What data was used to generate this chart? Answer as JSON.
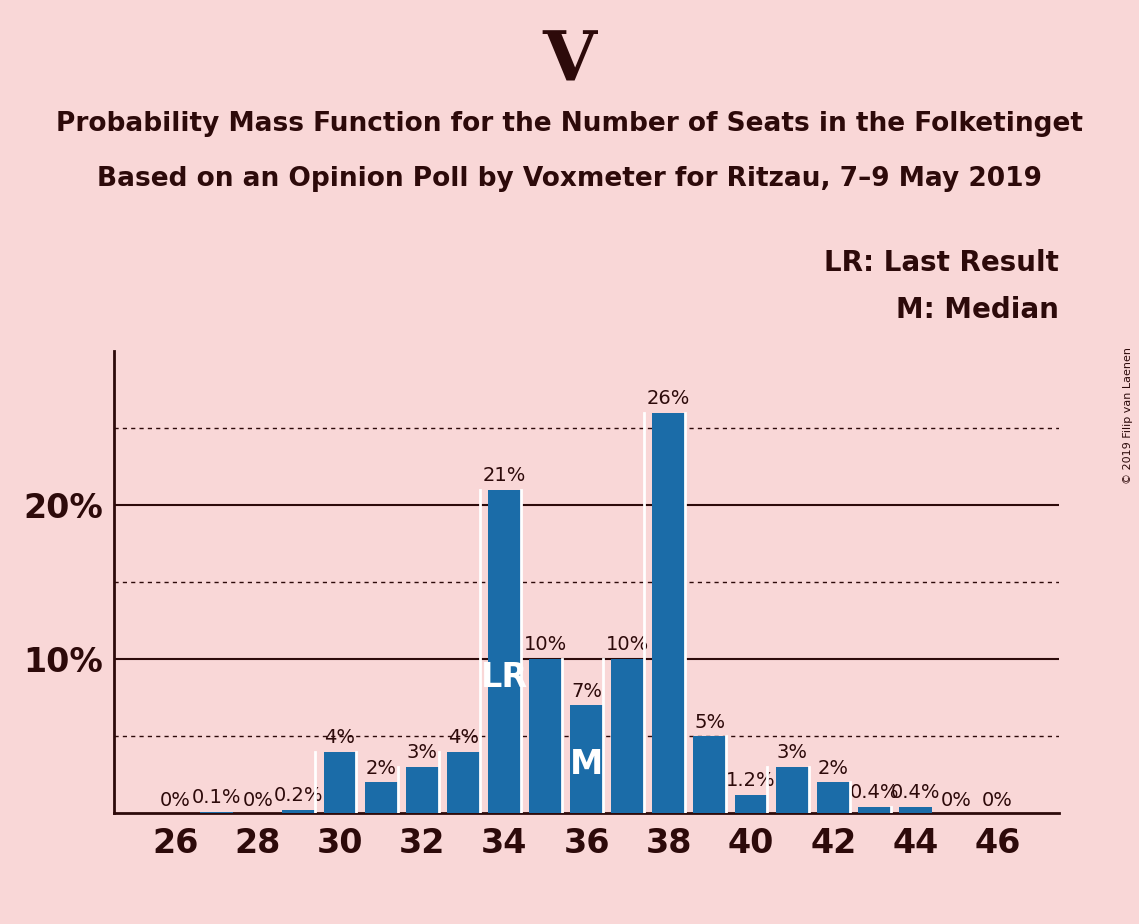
{
  "title_party": "V",
  "title_line1": "Probability Mass Function for the Number of Seats in the Folketinget",
  "title_line2": "Based on an Opinion Poll by Voxmeter for Ritzau, 7–9 May 2019",
  "copyright": "© 2019 Filip van Laenen",
  "seats": [
    26,
    27,
    28,
    29,
    30,
    31,
    32,
    33,
    34,
    35,
    36,
    37,
    38,
    39,
    40,
    41,
    42,
    43,
    44,
    45,
    46
  ],
  "probabilities": [
    0.0,
    0.1,
    0.0,
    0.2,
    4.0,
    2.0,
    3.0,
    4.0,
    21.0,
    10.0,
    7.0,
    10.0,
    26.0,
    5.0,
    1.2,
    3.0,
    2.0,
    0.4,
    0.4,
    0.0,
    0.0
  ],
  "labels": [
    "0%",
    "0.1%",
    "0%",
    "0.2%",
    "4%",
    "2%",
    "3%",
    "4%",
    "21%",
    "10%",
    "7%",
    "10%",
    "26%",
    "5%",
    "1.2%",
    "3%",
    "2%",
    "0.4%",
    "0.4%",
    "0%",
    "0%"
  ],
  "bar_color": "#1b6ca8",
  "background_color": "#f9d7d7",
  "text_color": "#2d0a0a",
  "lr_seat": 34,
  "median_seat": 36,
  "ylim": [
    0,
    30
  ],
  "legend_lr": "LR: Last Result",
  "legend_m": "M: Median",
  "dotted_lines": [
    5,
    15,
    25
  ],
  "solid_lines": [
    10,
    20
  ],
  "party_fontsize": 50,
  "title_fontsize": 19,
  "subtitle_fontsize": 19,
  "xlabel_fontsize": 24,
  "ylabel_fontsize": 24,
  "bar_label_fontsize": 14,
  "legend_fontsize": 20,
  "annotation_fontsize": 24,
  "copyright_fontsize": 8
}
